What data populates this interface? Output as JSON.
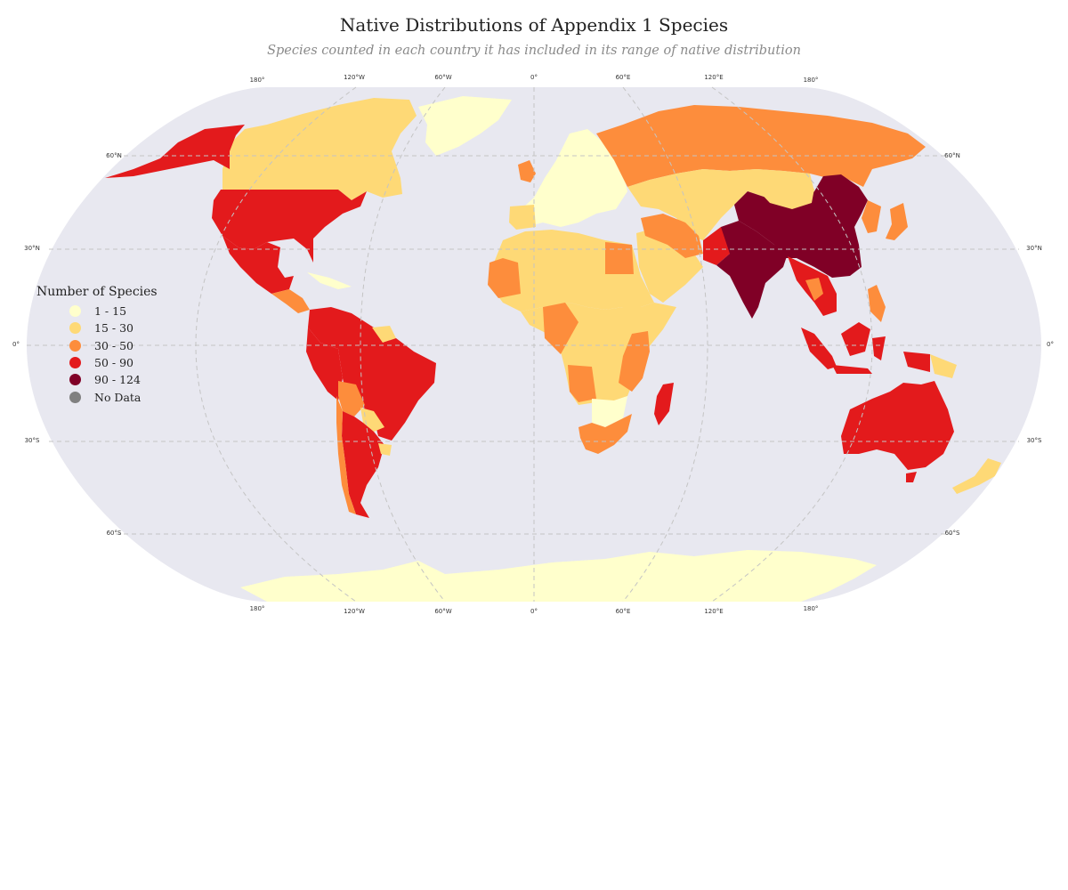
{
  "title": "Native Distributions of Appendix 1 Species",
  "subtitle": "Species counted in each country it has included in its range of native distribution",
  "legend": {
    "title": "Number of Species",
    "items": [
      {
        "label": "1 - 15",
        "color": "#ffffcc"
      },
      {
        "label": "15 - 30",
        "color": "#fed976"
      },
      {
        "label": "30 - 50",
        "color": "#fd8d3c"
      },
      {
        "label": "50 - 90",
        "color": "#e31a1c"
      },
      {
        "label": "90 - 124",
        "color": "#800026"
      },
      {
        "label": "No Data",
        "color": "#808080"
      }
    ]
  },
  "colors": {
    "ocean": "#e8e8f0",
    "grid": "#c4c4c4",
    "background": "#ffffff"
  },
  "graticule": {
    "lon_labels_top": [
      "180°",
      "120°W",
      "60°W",
      "0°",
      "60°E",
      "120°E",
      "180°"
    ],
    "lon_labels_bottom": [
      "180°",
      "120°W",
      "60°W",
      "0°",
      "60°E",
      "120°E",
      "180°"
    ],
    "lat_labels_left": [
      "60°N",
      "30°N",
      "0°",
      "30°S",
      "60°S"
    ],
    "lat_labels_right": [
      "60°N",
      "30°N",
      "0°",
      "30°S",
      "60°S"
    ]
  },
  "regions": [
    {
      "name": "Greenland",
      "class": "1 - 15"
    },
    {
      "name": "Canada",
      "class": "15 - 30"
    },
    {
      "name": "Alaska / United States",
      "class": "50 - 90"
    },
    {
      "name": "Mexico",
      "class": "50 - 90"
    },
    {
      "name": "Central America",
      "class": "30 - 50"
    },
    {
      "name": "Brazil",
      "class": "50 - 90"
    },
    {
      "name": "Argentina",
      "class": "50 - 90"
    },
    {
      "name": "Chile",
      "class": "30 - 50"
    },
    {
      "name": "Europe",
      "class": "1 - 15"
    },
    {
      "name": "Russia",
      "class": "30 - 50"
    },
    {
      "name": "Kazakhstan",
      "class": "15 - 30"
    },
    {
      "name": "North Africa",
      "class": "15 - 30"
    },
    {
      "name": "Egypt",
      "class": "30 - 50"
    },
    {
      "name": "Central Africa",
      "class": "15 - 30"
    },
    {
      "name": "Tanzania / East Africa",
      "class": "30 - 50"
    },
    {
      "name": "South Africa",
      "class": "30 - 50"
    },
    {
      "name": "Madagascar",
      "class": "50 - 90"
    },
    {
      "name": "Middle East",
      "class": "15 - 30"
    },
    {
      "name": "Iran",
      "class": "30 - 50"
    },
    {
      "name": "India",
      "class": "90 - 124"
    },
    {
      "name": "China",
      "class": "90 - 124"
    },
    {
      "name": "Southeast Asia",
      "class": "50 - 90"
    },
    {
      "name": "Indonesia",
      "class": "50 - 90"
    },
    {
      "name": "Australia",
      "class": "50 - 90"
    },
    {
      "name": "New Zealand",
      "class": "15 - 30"
    },
    {
      "name": "Antarctica",
      "class": "1 - 15"
    }
  ]
}
